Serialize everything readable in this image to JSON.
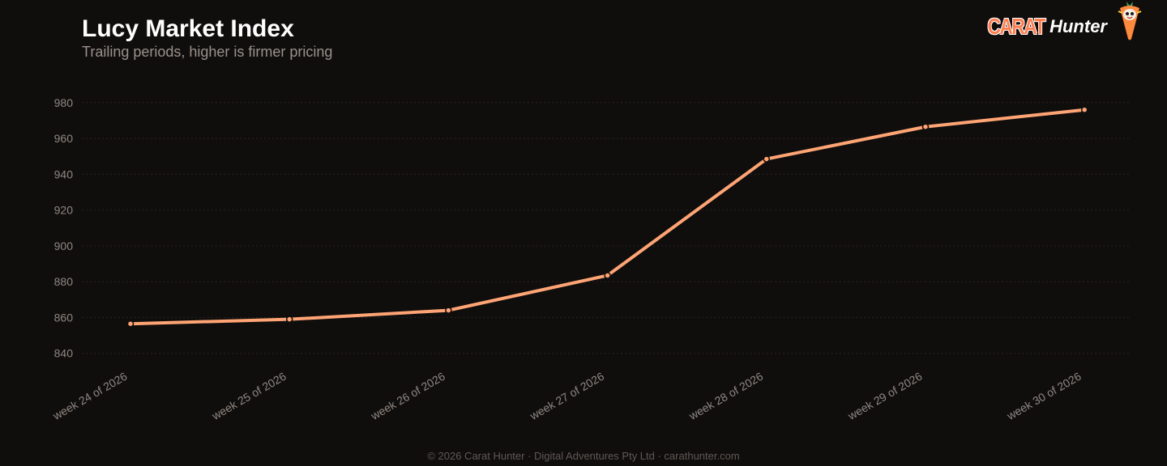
{
  "header": {
    "title": "Lucy Market Index",
    "subtitle": "Trailing periods, higher is firmer pricing"
  },
  "brand": {
    "carat": "CARAT",
    "hunter": "Hunter",
    "mascot_icon": "carrot-mascot-icon"
  },
  "footer": {
    "text": "© 2026 Carat Hunter · Digital Adventures Pty Ltd · carathunter.com"
  },
  "colors": {
    "background": "#100e0d",
    "line": "#ffa474",
    "grid": "#26221f",
    "tick_text": "#8f8781",
    "brand_orange": "#ff7f50"
  },
  "chart_data": {
    "type": "line",
    "categories": [
      "week 24 of 2026",
      "week 25 of 2026",
      "week 26 of 2026",
      "week 27 of 2026",
      "week 28 of 2026",
      "week 29 of 2026",
      "week 30 of 2026"
    ],
    "values": [
      856.5,
      859,
      864,
      883.5,
      948.5,
      966.5,
      976
    ],
    "yticks": [
      840,
      860,
      880,
      900,
      920,
      940,
      960,
      980
    ],
    "ylim": [
      834,
      984
    ],
    "grid": true,
    "legend": "none",
    "title": "Lucy Market Index",
    "subtitle": "Trailing periods, higher is firmer pricing"
  }
}
